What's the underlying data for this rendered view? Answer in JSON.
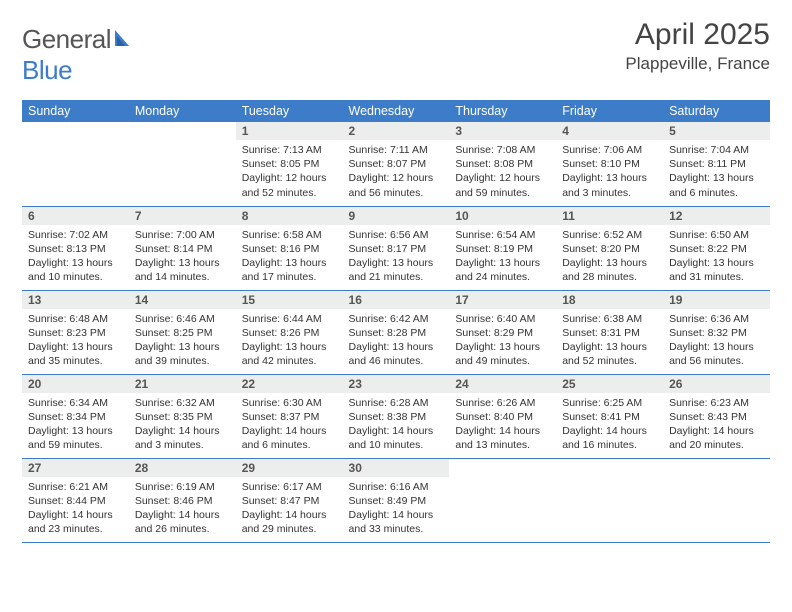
{
  "brand": {
    "part1": "General",
    "part2": "Blue"
  },
  "title": "April 2025",
  "location": "Plappeville, France",
  "header_color": "#3d7cc9",
  "daynum_bg": "#eceded",
  "weekdays": [
    "Sunday",
    "Monday",
    "Tuesday",
    "Wednesday",
    "Thursday",
    "Friday",
    "Saturday"
  ],
  "weeks": [
    [
      null,
      null,
      {
        "n": "1",
        "sunrise": "Sunrise: 7:13 AM",
        "sunset": "Sunset: 8:05 PM",
        "daylight": "Daylight: 12 hours and 52 minutes."
      },
      {
        "n": "2",
        "sunrise": "Sunrise: 7:11 AM",
        "sunset": "Sunset: 8:07 PM",
        "daylight": "Daylight: 12 hours and 56 minutes."
      },
      {
        "n": "3",
        "sunrise": "Sunrise: 7:08 AM",
        "sunset": "Sunset: 8:08 PM",
        "daylight": "Daylight: 12 hours and 59 minutes."
      },
      {
        "n": "4",
        "sunrise": "Sunrise: 7:06 AM",
        "sunset": "Sunset: 8:10 PM",
        "daylight": "Daylight: 13 hours and 3 minutes."
      },
      {
        "n": "5",
        "sunrise": "Sunrise: 7:04 AM",
        "sunset": "Sunset: 8:11 PM",
        "daylight": "Daylight: 13 hours and 6 minutes."
      }
    ],
    [
      {
        "n": "6",
        "sunrise": "Sunrise: 7:02 AM",
        "sunset": "Sunset: 8:13 PM",
        "daylight": "Daylight: 13 hours and 10 minutes."
      },
      {
        "n": "7",
        "sunrise": "Sunrise: 7:00 AM",
        "sunset": "Sunset: 8:14 PM",
        "daylight": "Daylight: 13 hours and 14 minutes."
      },
      {
        "n": "8",
        "sunrise": "Sunrise: 6:58 AM",
        "sunset": "Sunset: 8:16 PM",
        "daylight": "Daylight: 13 hours and 17 minutes."
      },
      {
        "n": "9",
        "sunrise": "Sunrise: 6:56 AM",
        "sunset": "Sunset: 8:17 PM",
        "daylight": "Daylight: 13 hours and 21 minutes."
      },
      {
        "n": "10",
        "sunrise": "Sunrise: 6:54 AM",
        "sunset": "Sunset: 8:19 PM",
        "daylight": "Daylight: 13 hours and 24 minutes."
      },
      {
        "n": "11",
        "sunrise": "Sunrise: 6:52 AM",
        "sunset": "Sunset: 8:20 PM",
        "daylight": "Daylight: 13 hours and 28 minutes."
      },
      {
        "n": "12",
        "sunrise": "Sunrise: 6:50 AM",
        "sunset": "Sunset: 8:22 PM",
        "daylight": "Daylight: 13 hours and 31 minutes."
      }
    ],
    [
      {
        "n": "13",
        "sunrise": "Sunrise: 6:48 AM",
        "sunset": "Sunset: 8:23 PM",
        "daylight": "Daylight: 13 hours and 35 minutes."
      },
      {
        "n": "14",
        "sunrise": "Sunrise: 6:46 AM",
        "sunset": "Sunset: 8:25 PM",
        "daylight": "Daylight: 13 hours and 39 minutes."
      },
      {
        "n": "15",
        "sunrise": "Sunrise: 6:44 AM",
        "sunset": "Sunset: 8:26 PM",
        "daylight": "Daylight: 13 hours and 42 minutes."
      },
      {
        "n": "16",
        "sunrise": "Sunrise: 6:42 AM",
        "sunset": "Sunset: 8:28 PM",
        "daylight": "Daylight: 13 hours and 46 minutes."
      },
      {
        "n": "17",
        "sunrise": "Sunrise: 6:40 AM",
        "sunset": "Sunset: 8:29 PM",
        "daylight": "Daylight: 13 hours and 49 minutes."
      },
      {
        "n": "18",
        "sunrise": "Sunrise: 6:38 AM",
        "sunset": "Sunset: 8:31 PM",
        "daylight": "Daylight: 13 hours and 52 minutes."
      },
      {
        "n": "19",
        "sunrise": "Sunrise: 6:36 AM",
        "sunset": "Sunset: 8:32 PM",
        "daylight": "Daylight: 13 hours and 56 minutes."
      }
    ],
    [
      {
        "n": "20",
        "sunrise": "Sunrise: 6:34 AM",
        "sunset": "Sunset: 8:34 PM",
        "daylight": "Daylight: 13 hours and 59 minutes."
      },
      {
        "n": "21",
        "sunrise": "Sunrise: 6:32 AM",
        "sunset": "Sunset: 8:35 PM",
        "daylight": "Daylight: 14 hours and 3 minutes."
      },
      {
        "n": "22",
        "sunrise": "Sunrise: 6:30 AM",
        "sunset": "Sunset: 8:37 PM",
        "daylight": "Daylight: 14 hours and 6 minutes."
      },
      {
        "n": "23",
        "sunrise": "Sunrise: 6:28 AM",
        "sunset": "Sunset: 8:38 PM",
        "daylight": "Daylight: 14 hours and 10 minutes."
      },
      {
        "n": "24",
        "sunrise": "Sunrise: 6:26 AM",
        "sunset": "Sunset: 8:40 PM",
        "daylight": "Daylight: 14 hours and 13 minutes."
      },
      {
        "n": "25",
        "sunrise": "Sunrise: 6:25 AM",
        "sunset": "Sunset: 8:41 PM",
        "daylight": "Daylight: 14 hours and 16 minutes."
      },
      {
        "n": "26",
        "sunrise": "Sunrise: 6:23 AM",
        "sunset": "Sunset: 8:43 PM",
        "daylight": "Daylight: 14 hours and 20 minutes."
      }
    ],
    [
      {
        "n": "27",
        "sunrise": "Sunrise: 6:21 AM",
        "sunset": "Sunset: 8:44 PM",
        "daylight": "Daylight: 14 hours and 23 minutes."
      },
      {
        "n": "28",
        "sunrise": "Sunrise: 6:19 AM",
        "sunset": "Sunset: 8:46 PM",
        "daylight": "Daylight: 14 hours and 26 minutes."
      },
      {
        "n": "29",
        "sunrise": "Sunrise: 6:17 AM",
        "sunset": "Sunset: 8:47 PM",
        "daylight": "Daylight: 14 hours and 29 minutes."
      },
      {
        "n": "30",
        "sunrise": "Sunrise: 6:16 AM",
        "sunset": "Sunset: 8:49 PM",
        "daylight": "Daylight: 14 hours and 33 minutes."
      },
      null,
      null,
      null
    ]
  ]
}
